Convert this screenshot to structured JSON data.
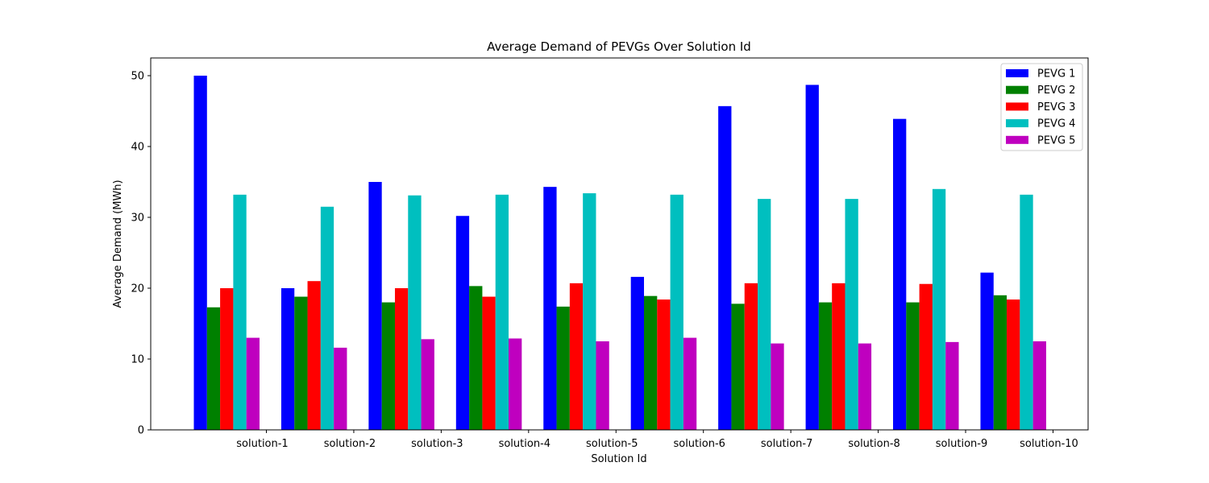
{
  "chart_data": {
    "type": "bar",
    "title": "Average Demand of PEVGs Over Solution Id",
    "xlabel": "Solution Id",
    "ylabel": "Average Demand (MWh)",
    "ylim": [
      0,
      52.5
    ],
    "yticks": [
      0,
      10,
      20,
      30,
      40,
      50
    ],
    "grid": false,
    "legend_position": "top-right",
    "categories": [
      "solution-1",
      "solution-2",
      "solution-3",
      "solution-4",
      "solution-5",
      "solution-6",
      "solution-7",
      "solution-8",
      "solution-9",
      "solution-10"
    ],
    "series": [
      {
        "name": "PEVG 1",
        "color": "#0000ff",
        "values": [
          50.0,
          20.0,
          35.0,
          30.2,
          34.3,
          21.6,
          45.7,
          48.7,
          43.9,
          22.2
        ]
      },
      {
        "name": "PEVG 2",
        "color": "#008000",
        "values": [
          17.3,
          18.8,
          18.0,
          20.3,
          17.4,
          18.9,
          17.8,
          18.0,
          18.0,
          19.0
        ]
      },
      {
        "name": "PEVG 3",
        "color": "#ff0000",
        "values": [
          20.0,
          21.0,
          20.0,
          18.8,
          20.7,
          18.4,
          20.7,
          20.7,
          20.6,
          18.4
        ]
      },
      {
        "name": "PEVG 4",
        "color": "#00bfbf",
        "values": [
          33.2,
          31.5,
          33.1,
          33.2,
          33.4,
          33.2,
          32.6,
          32.6,
          34.0,
          33.2
        ]
      },
      {
        "name": "PEVG 5",
        "color": "#bf00bf",
        "values": [
          13.0,
          11.6,
          12.8,
          12.9,
          12.5,
          13.0,
          12.2,
          12.2,
          12.4,
          12.5
        ]
      }
    ]
  }
}
